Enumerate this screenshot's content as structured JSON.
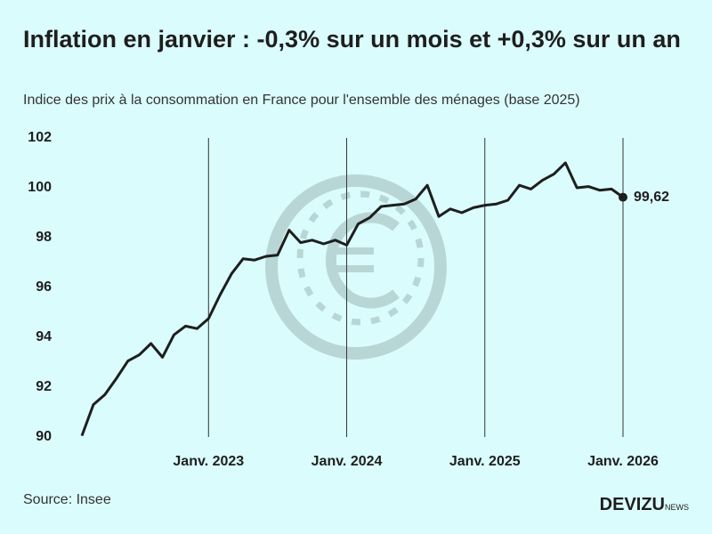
{
  "chart_data": {
    "type": "line",
    "title": "Inflation en janvier : -0,3% sur un mois et +0,3% sur un an",
    "subtitle": "Indice des prix à la consommation en France pour l'ensemble des ménages (base 2025)",
    "source": "Source: Insee",
    "brand": "DEVIZU",
    "brand_suffix": "NEWS",
    "categories": [
      null,
      null,
      null,
      null,
      null,
      null,
      null,
      null,
      null,
      null,
      null,
      "Janv. 2023",
      null,
      null,
      null,
      null,
      null,
      null,
      null,
      null,
      null,
      null,
      null,
      "Janv. 2024",
      null,
      null,
      null,
      null,
      null,
      null,
      null,
      null,
      null,
      null,
      null,
      "Janv. 2025",
      null,
      null,
      null,
      null,
      null,
      null,
      null,
      null,
      null,
      null,
      null,
      "Janv. 2026"
    ],
    "series": [
      {
        "name": "Indice des prix",
        "color": "#1e1e1e",
        "values": [
          90.05,
          91.3,
          91.7,
          92.35,
          93.05,
          93.3,
          93.75,
          93.2,
          94.1,
          94.45,
          94.35,
          94.75,
          95.7,
          96.55,
          97.15,
          97.1,
          97.25,
          97.3,
          98.3,
          97.8,
          97.9,
          97.75,
          97.9,
          97.7,
          98.55,
          98.8,
          99.25,
          99.3,
          99.35,
          99.55,
          100.1,
          98.85,
          99.15,
          99.0,
          99.2,
          99.3,
          99.35,
          99.5,
          100.1,
          99.95,
          100.3,
          100.55,
          101.0,
          100.0,
          100.05,
          99.9,
          99.95,
          99.62
        ],
        "value_labels": [
          null,
          null,
          null,
          null,
          null,
          null,
          null,
          null,
          null,
          null,
          null,
          null,
          null,
          null,
          null,
          null,
          null,
          null,
          null,
          null,
          null,
          null,
          null,
          null,
          null,
          null,
          null,
          null,
          null,
          null,
          null,
          null,
          null,
          null,
          null,
          null,
          null,
          null,
          null,
          null,
          null,
          null,
          null,
          null,
          null,
          null,
          null,
          "99,62"
        ]
      }
    ],
    "ylim": [
      90,
      102
    ],
    "yticks": [
      90,
      92,
      94,
      96,
      98,
      100,
      102
    ],
    "grid": "x-labeled"
  }
}
